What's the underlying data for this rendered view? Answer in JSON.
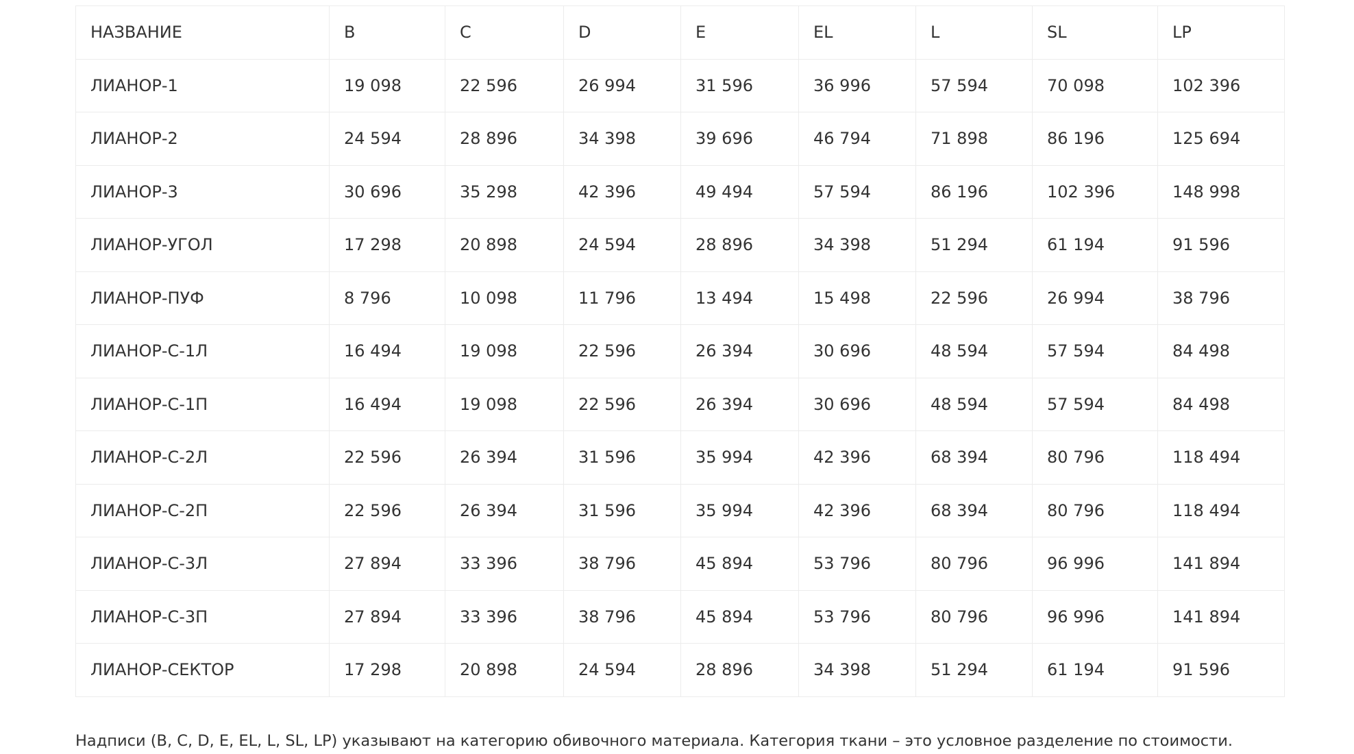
{
  "table": {
    "headers": [
      "НАЗВАНИЕ",
      "B",
      "C",
      "D",
      "E",
      "EL",
      "L",
      "SL",
      "LP"
    ],
    "rows": [
      [
        "ЛИАНОР-1",
        "19 098",
        "22 596",
        "26 994",
        "31 596",
        "36 996",
        "57 594",
        "70 098",
        "102 396"
      ],
      [
        "ЛИАНОР-2",
        "24 594",
        "28 896",
        "34 398",
        "39 696",
        "46 794",
        "71 898",
        "86 196",
        "125 694"
      ],
      [
        "ЛИАНОР-3",
        "30 696",
        "35 298",
        "42 396",
        "49 494",
        "57 594",
        "86 196",
        "102 396",
        "148 998"
      ],
      [
        "ЛИАНОР-УГОЛ",
        "17 298",
        "20 898",
        "24 594",
        "28 896",
        "34 398",
        "51 294",
        "61 194",
        "91 596"
      ],
      [
        "ЛИАНОР-ПУФ",
        "8 796",
        "10 098",
        "11 796",
        "13 494",
        "15 498",
        "22 596",
        "26 994",
        "38 796"
      ],
      [
        "ЛИАНОР-С-1Л",
        "16 494",
        "19 098",
        "22 596",
        "26 394",
        "30 696",
        "48 594",
        "57 594",
        "84 498"
      ],
      [
        "ЛИАНОР-С-1П",
        "16 494",
        "19 098",
        "22 596",
        "26 394",
        "30 696",
        "48 594",
        "57 594",
        "84 498"
      ],
      [
        "ЛИАНОР-С-2Л",
        "22 596",
        "26 394",
        "31 596",
        "35 994",
        "42 396",
        "68 394",
        "80 796",
        "118 494"
      ],
      [
        "ЛИАНОР-С-2П",
        "22 596",
        "26 394",
        "31 596",
        "35 994",
        "42 396",
        "68 394",
        "80 796",
        "118 494"
      ],
      [
        "ЛИАНОР-С-3Л",
        "27 894",
        "33 396",
        "38 796",
        "45 894",
        "53 796",
        "80 796",
        "96 996",
        "141 894"
      ],
      [
        "ЛИАНОР-С-3П",
        "27 894",
        "33 396",
        "38 796",
        "45 894",
        "53 796",
        "80 796",
        "96 996",
        "141 894"
      ],
      [
        "ЛИАНОР-СЕКТОР",
        "17 298",
        "20 898",
        "24 594",
        "28 896",
        "34 398",
        "51 294",
        "61 194",
        "91 596"
      ]
    ]
  },
  "note": "Надписи (B, C, D, E, EL, L, SL, LP) указывают на категорию обивочного материала. Категория ткани – это условное разделение по стоимости."
}
